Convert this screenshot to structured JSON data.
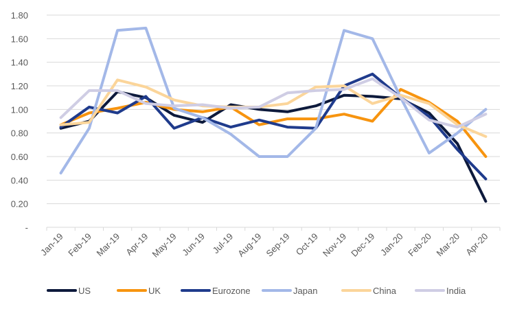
{
  "chart_data": {
    "type": "line",
    "title": "",
    "xlabel": "",
    "ylabel": "",
    "categories": [
      "Jan-19",
      "Feb-19",
      "Mar-19",
      "Apr-19",
      "May-19",
      "Jun-19",
      "Jul-19",
      "Aug-19",
      "Sep-19",
      "Oct-19",
      "Nov-19",
      "Dec-19",
      "Jan-20",
      "Feb-20",
      "Mar-20",
      "Apr-20"
    ],
    "ylim": [
      0,
      1.8
    ],
    "yticks": [
      "-",
      "0.20",
      "0.40",
      "0.60",
      "0.80",
      "1.00",
      "1.20",
      "1.40",
      "1.60",
      "1.80"
    ],
    "grid": true,
    "legend_position": "bottom",
    "series": [
      {
        "name": "US",
        "color": "#0d1a3c",
        "values": [
          0.84,
          0.9,
          1.15,
          1.1,
          0.95,
          0.89,
          1.04,
          1.0,
          0.98,
          1.03,
          1.12,
          1.11,
          1.09,
          0.97,
          0.71,
          0.22
        ]
      },
      {
        "name": "UK",
        "color": "#f7940f",
        "values": [
          0.87,
          0.97,
          1.01,
          1.06,
          1.0,
          0.98,
          1.02,
          0.87,
          0.92,
          0.92,
          0.96,
          0.9,
          1.17,
          1.06,
          0.9,
          0.6
        ]
      },
      {
        "name": "Eurozone",
        "color": "#1f3b8c",
        "values": [
          0.85,
          1.02,
          0.97,
          1.11,
          0.84,
          0.93,
          0.85,
          0.91,
          0.85,
          0.84,
          1.2,
          1.3,
          1.1,
          0.94,
          0.66,
          0.41
        ]
      },
      {
        "name": "Japan",
        "color": "#a3b8e8",
        "values": [
          0.46,
          0.84,
          1.67,
          1.69,
          1.01,
          0.93,
          0.79,
          0.6,
          0.6,
          0.84,
          1.67,
          1.6,
          1.1,
          0.63,
          0.8,
          1.0
        ]
      },
      {
        "name": "China",
        "color": "#fbd59a",
        "values": [
          0.87,
          0.89,
          1.25,
          1.19,
          1.08,
          1.03,
          1.02,
          1.02,
          1.05,
          1.19,
          1.2,
          1.05,
          1.12,
          1.05,
          0.87,
          0.77
        ]
      },
      {
        "name": "India",
        "color": "#cfcde4",
        "values": [
          0.93,
          1.16,
          1.16,
          1.05,
          1.03,
          1.04,
          1.01,
          1.02,
          1.14,
          1.16,
          1.17,
          1.26,
          1.1,
          0.91,
          0.85,
          0.96
        ]
      }
    ]
  }
}
